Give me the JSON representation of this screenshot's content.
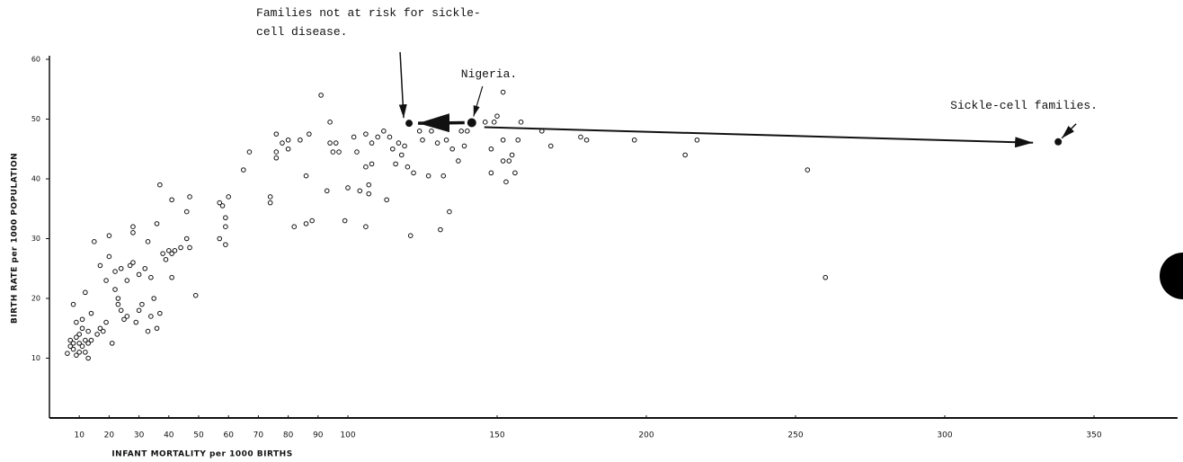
{
  "chart_data": {
    "type": "scatter",
    "x_label": "INFANT MORTALITY per 1000 BIRTHS",
    "y_label": "BIRTH RATE per 1000 POPULATION",
    "xlim": [
      0,
      378
    ],
    "ylim": [
      0,
      60
    ],
    "xticks": [
      10,
      20,
      30,
      40,
      50,
      60,
      70,
      80,
      90,
      100,
      150,
      200,
      250,
      300,
      350
    ],
    "yticks": [
      10,
      20,
      30,
      40,
      50,
      60
    ],
    "color": "#111111",
    "x": [
      6,
      7,
      7,
      8,
      8,
      9,
      9,
      10,
      10,
      10,
      11,
      11,
      11,
      12,
      12,
      13,
      13,
      13,
      14,
      14,
      9,
      8,
      12,
      15,
      16,
      17,
      17,
      18,
      19,
      19,
      20,
      20,
      21,
      22,
      22,
      23,
      23,
      24,
      24,
      25,
      26,
      26,
      27,
      28,
      28,
      28,
      29,
      30,
      30,
      31,
      32,
      33,
      33,
      34,
      34,
      35,
      36,
      36,
      37,
      37,
      38,
      39,
      40,
      41,
      41,
      41,
      42,
      44,
      46,
      46,
      47,
      47,
      49,
      57,
      57,
      58,
      59,
      59,
      59,
      60,
      65,
      67,
      74,
      74,
      76,
      76,
      76,
      78,
      80,
      80,
      82,
      84,
      86,
      86,
      87,
      88,
      91,
      93,
      94,
      94,
      95,
      96,
      97,
      99,
      100,
      102,
      103,
      104,
      106,
      106,
      106,
      107,
      107,
      108,
      108,
      110,
      112,
      113,
      114,
      115,
      116,
      117,
      118,
      119,
      120,
      121,
      122,
      124,
      125,
      127,
      128,
      130,
      131,
      132,
      133,
      134,
      135,
      137,
      138,
      139,
      140,
      146,
      148,
      148,
      149,
      150,
      152,
      152,
      152,
      153,
      154,
      155,
      156,
      157,
      158,
      165,
      168,
      178,
      180,
      196,
      213,
      217,
      254,
      260
    ],
    "y": [
      10.8,
      12,
      13,
      11.5,
      12.5,
      10.5,
      13.5,
      11,
      12.5,
      14,
      12,
      15,
      16.5,
      13,
      11,
      10,
      12.5,
      14.5,
      13,
      17.5,
      16,
      19,
      21,
      29.5,
      14,
      25.5,
      15,
      14.5,
      16,
      23,
      27,
      30.5,
      12.5,
      24.5,
      21.5,
      19,
      20,
      18,
      25,
      16.5,
      23,
      17,
      25.5,
      26,
      31,
      32,
      16,
      24,
      18,
      19,
      25,
      14.5,
      29.5,
      17,
      23.5,
      20,
      15,
      32.5,
      17.5,
      39,
      27.5,
      26.5,
      28,
      27.5,
      23.5,
      36.5,
      28,
      28.5,
      30,
      34.5,
      37,
      28.5,
      20.5,
      36,
      30,
      35.5,
      33.5,
      32,
      29,
      37,
      41.5,
      44.5,
      37,
      36,
      47.5,
      43.5,
      44.5,
      46,
      45,
      46.5,
      32,
      46.5,
      40.5,
      32.5,
      47.5,
      33,
      54,
      38,
      49.5,
      46,
      44.5,
      46,
      44.5,
      33,
      38.5,
      47,
      44.5,
      38,
      32,
      47.5,
      42,
      39,
      37.5,
      46,
      42.5,
      47,
      48,
      36.5,
      47,
      45,
      42.5,
      46,
      44,
      45.5,
      42,
      30.5,
      41,
      48,
      46.5,
      40.5,
      48,
      46,
      31.5,
      40.5,
      46.5,
      34.5,
      45,
      43,
      48,
      45.5,
      48,
      49.5,
      41,
      45,
      49.5,
      50.5,
      54.5,
      46.5,
      43,
      39.5,
      43,
      44,
      41,
      46.5,
      49.5,
      48,
      45.5,
      47,
      46.5,
      46.5,
      44,
      46.5,
      41.5,
      23.5
    ],
    "annotations": [
      {
        "text": "Families not at risk for sickle-cell disease.",
        "x": 120.5,
        "y": 49.3
      },
      {
        "text": "Nigeria.",
        "x": 141.5,
        "y": 49.4
      },
      {
        "text": "Sickle-cell families.",
        "x": 338,
        "y": 46.2
      }
    ]
  }
}
